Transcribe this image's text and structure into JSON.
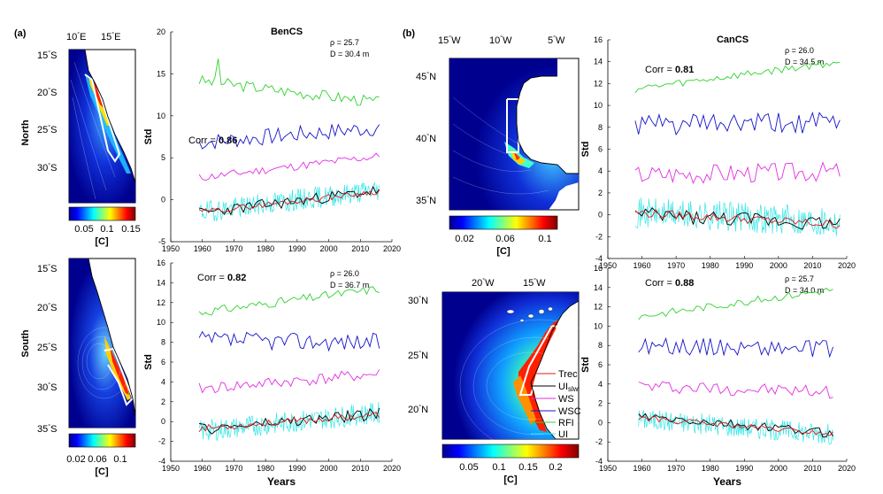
{
  "figure": {
    "panel_a": "(a)",
    "panel_b": "(b)",
    "row_north": "North",
    "row_south": "South",
    "years_label": "Years",
    "std_label": "Std",
    "colorbar_unit": "[C]",
    "benguela_title": "BenCS",
    "canary_title": "CanCS",
    "deg": "°"
  },
  "maps": [
    {
      "id": "ben-north",
      "xticks": [
        "10",
        "15"
      ],
      "xhem": "E",
      "yticks": [
        "15",
        "20",
        "25",
        "30"
      ],
      "yhem": "S",
      "colorbar_ticks": [
        "0.05",
        "0.1",
        "0.15"
      ],
      "colorbar_min": 0.0,
      "colorbar_max": 0.16
    },
    {
      "id": "ben-south",
      "xticks": [],
      "xhem": "E",
      "yticks": [
        "15",
        "20",
        "25",
        "30",
        "35"
      ],
      "yhem": "S",
      "colorbar_ticks": [
        "0.02",
        "0.06",
        "0.1"
      ],
      "colorbar_min": 0.0,
      "colorbar_max": 0.13
    },
    {
      "id": "can-north",
      "xticks": [
        "15",
        "10",
        "5"
      ],
      "xhem": "W",
      "yticks": [
        "45",
        "40",
        "35"
      ],
      "yhem": "N",
      "colorbar_ticks": [
        "0.02",
        "0.06",
        "0.1"
      ],
      "colorbar_min": 0.0,
      "colorbar_max": 0.11
    },
    {
      "id": "can-south",
      "xticks": [
        "20",
        "15"
      ],
      "xhem": "W",
      "yticks": [
        "30",
        "25",
        "20"
      ],
      "yhem": "N",
      "colorbar_ticks": [
        "0.05",
        "0.1",
        "0.15",
        "0.2"
      ],
      "colorbar_min": 0.0,
      "colorbar_max": 0.25
    }
  ],
  "legend": {
    "colors": {
      "Trec": "#e31a1c",
      "UIslw": "#000000",
      "WS": "#e32de3",
      "WSC": "#1414c8",
      "RFI": "#2fd22f",
      "UI": "#33e6e6"
    },
    "items": [
      {
        "key": "Trec",
        "label": "Trec",
        "sub": ""
      },
      {
        "key": "UIslw",
        "label": "UI",
        "sub": "slw"
      },
      {
        "key": "WS",
        "label": "WS",
        "sub": ""
      },
      {
        "key": "WSC",
        "label": "WSC",
        "sub": ""
      },
      {
        "key": "RFI",
        "label": "RFI",
        "sub": ""
      },
      {
        "key": "UI",
        "label": "UI",
        "sub": ""
      }
    ]
  },
  "chart_data": [
    {
      "id": "ben-north",
      "type": "line",
      "title": "BenCS",
      "ylabel": "Std",
      "xlabel": "",
      "corr_label": "Corr = ",
      "corr": "0.86",
      "rho_label": "ρ = 25.7",
      "depth_label": "D = 30.4 m",
      "xlim": [
        1950,
        2020
      ],
      "ylim": [
        -5,
        20
      ],
      "xticks": [
        "1950",
        "1960",
        "1970",
        "1980",
        "1990",
        "2000",
        "2010",
        "2020"
      ],
      "yticks": [
        "-5",
        "0",
        "5",
        "10",
        "15",
        "20"
      ],
      "x_start": 1959,
      "x_end": 2016,
      "series": [
        {
          "key": "RFI",
          "base": [
            14.2,
            11.6
          ],
          "amp": 0.7,
          "seed": 3,
          "spike": {
            "x": 1965,
            "y": 16.8
          }
        },
        {
          "key": "WSC",
          "base": [
            6.8,
            8.6
          ],
          "amp": 1.0,
          "seed": 7
        },
        {
          "key": "WS",
          "base": [
            2.6,
            5.2
          ],
          "amp": 0.5,
          "seed": 11
        },
        {
          "key": "UI",
          "base": [
            -1.5,
            1.2
          ],
          "amp": 1.3,
          "seed": 19
        },
        {
          "key": "UIslw",
          "base": [
            -1.6,
            1.1
          ],
          "amp": 0.7,
          "seed": 23
        },
        {
          "key": "Trec",
          "base": [
            -1.5,
            1.0
          ],
          "amp": 0.35,
          "seed": 29
        }
      ]
    },
    {
      "id": "ben-south",
      "type": "line",
      "title": "",
      "ylabel": "Std",
      "xlabel": "Years",
      "corr_label": "Corr = ",
      "corr": "0.82",
      "rho_label": "ρ = 26.0",
      "depth_label": "D = 36.7 m",
      "xlim": [
        1950,
        2020
      ],
      "ylim": [
        -4,
        16
      ],
      "xticks": [
        "1950",
        "1960",
        "1970",
        "1980",
        "1990",
        "2000",
        "2010",
        "2020"
      ],
      "yticks": [
        "-4",
        "-2",
        "0",
        "2",
        "4",
        "6",
        "8",
        "10",
        "12",
        "14",
        "16"
      ],
      "x_start": 1959,
      "x_end": 2016,
      "series": [
        {
          "key": "RFI",
          "base": [
            11.0,
            13.4
          ],
          "amp": 0.45,
          "seed": 31
        },
        {
          "key": "WSC",
          "base": [
            8.2,
            8.0
          ],
          "amp": 0.9,
          "seed": 37
        },
        {
          "key": "WS",
          "base": [
            3.3,
            4.8
          ],
          "amp": 0.6,
          "seed": 41
        },
        {
          "key": "UI",
          "base": [
            -1.0,
            0.9
          ],
          "amp": 1.1,
          "seed": 43
        },
        {
          "key": "UIslw",
          "base": [
            -0.8,
            0.8
          ],
          "amp": 0.6,
          "seed": 47
        },
        {
          "key": "Trec",
          "base": [
            -0.7,
            0.7
          ],
          "amp": 0.35,
          "seed": 53
        }
      ]
    },
    {
      "id": "can-north",
      "type": "line",
      "title": "CanCS",
      "ylabel": "Std",
      "xlabel": "",
      "corr_label": "Corr = ",
      "corr": "0.81",
      "rho_label": "ρ = 26.0",
      "depth_label": "D = 34.5 m",
      "xlim": [
        1950,
        2020
      ],
      "ylim": [
        -4,
        16
      ],
      "xticks": [
        "1950",
        "1960",
        "1970",
        "1980",
        "1990",
        "2000",
        "2010",
        "2020"
      ],
      "yticks": [
        "-4",
        "-2",
        "0",
        "2",
        "4",
        "6",
        "8",
        "10",
        "12",
        "14",
        "16"
      ],
      "x_start": 1958,
      "x_end": 2018,
      "series": [
        {
          "key": "RFI",
          "base": [
            11.5,
            14.0
          ],
          "amp": 0.35,
          "seed": 59
        },
        {
          "key": "WSC",
          "base": [
            8.2,
            8.4
          ],
          "amp": 1.0,
          "seed": 61
        },
        {
          "key": "WS",
          "base": [
            3.7,
            4.0
          ],
          "amp": 0.9,
          "seed": 67
        },
        {
          "key": "UI",
          "base": [
            0.2,
            -0.6
          ],
          "amp": 1.4,
          "seed": 71
        },
        {
          "key": "UIslw",
          "base": [
            0.0,
            -0.8
          ],
          "amp": 0.7,
          "seed": 73
        },
        {
          "key": "Trec",
          "base": [
            0.2,
            -0.9
          ],
          "amp": 0.4,
          "seed": 79
        }
      ]
    },
    {
      "id": "can-south",
      "type": "line",
      "title": "",
      "ylabel": "Std",
      "xlabel": "Years",
      "corr_label": "Corr = ",
      "corr": "0.88",
      "rho_label": "ρ = 25.7",
      "depth_label": "D = 34.0 m",
      "xlim": [
        1950,
        2020
      ],
      "ylim": [
        -4,
        16
      ],
      "xticks": [
        "1950",
        "1960",
        "1970",
        "1980",
        "1990",
        "2000",
        "2010",
        "2020"
      ],
      "yticks": [
        "-4",
        "-2",
        "0",
        "2",
        "4",
        "6",
        "8",
        "10",
        "12",
        "14",
        "16"
      ],
      "x_start": 1959,
      "x_end": 2016,
      "series": [
        {
          "key": "RFI",
          "base": [
            11.0,
            13.8
          ],
          "amp": 0.4,
          "seed": 83
        },
        {
          "key": "WSC",
          "base": [
            8.0,
            7.6
          ],
          "amp": 0.9,
          "seed": 89
        },
        {
          "key": "WS",
          "base": [
            3.8,
            3.2
          ],
          "amp": 0.7,
          "seed": 97
        },
        {
          "key": "UI",
          "base": [
            0.4,
            -1.2
          ],
          "amp": 1.1,
          "seed": 101
        },
        {
          "key": "UIslw",
          "base": [
            0.6,
            -1.1
          ],
          "amp": 0.5,
          "seed": 103
        },
        {
          "key": "Trec",
          "base": [
            0.5,
            -1.2
          ],
          "amp": 0.3,
          "seed": 107
        }
      ]
    }
  ]
}
